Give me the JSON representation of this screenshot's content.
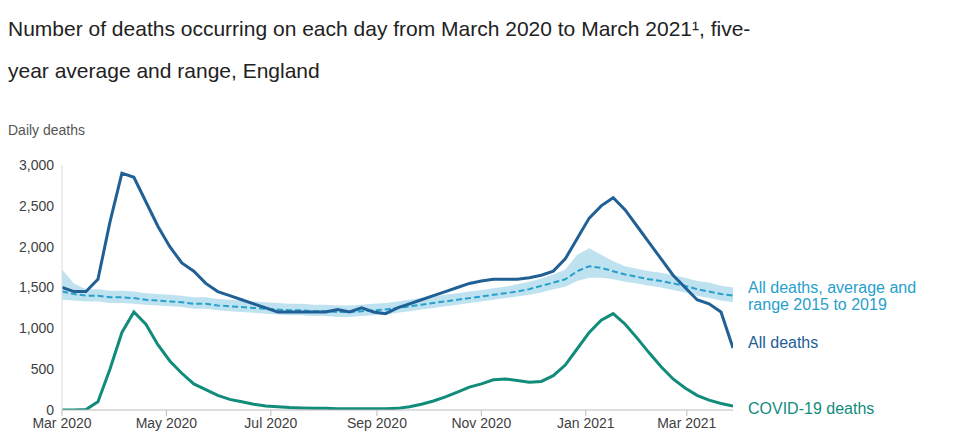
{
  "chart_data": {
    "type": "line",
    "title": "Number of deaths occurring on each day from March 2020 to March 2021¹, five-year average and range, England",
    "y_label": "Daily deaths",
    "x": [
      0,
      7,
      14,
      21,
      28,
      35,
      42,
      49,
      56,
      63,
      70,
      77,
      84,
      91,
      98,
      105,
      112,
      119,
      126,
      133,
      140,
      147,
      154,
      161,
      168,
      175,
      182,
      189,
      196,
      203,
      210,
      217,
      224,
      231,
      238,
      245,
      252,
      259,
      266,
      273,
      280,
      287,
      294,
      301,
      308,
      315,
      322,
      329,
      336,
      343,
      350,
      357,
      364,
      371,
      378,
      385,
      392
    ],
    "xlim": [
      0,
      392
    ],
    "xticks": [
      {
        "value": 0,
        "label": "Mar 2020"
      },
      {
        "value": 61,
        "label": "May 2020"
      },
      {
        "value": 122,
        "label": "Jul 2020"
      },
      {
        "value": 184,
        "label": "Sep 2020"
      },
      {
        "value": 245,
        "label": "Nov 2020"
      },
      {
        "value": 306,
        "label": "Jan 2021"
      },
      {
        "value": 365,
        "label": "Mar 2021"
      }
    ],
    "ylim": [
      0,
      3000
    ],
    "yticks": [
      0,
      500,
      {
        "value": 1000,
        "label": "1,000"
      },
      {
        "value": 1500,
        "label": "1,500"
      },
      {
        "value": 2000,
        "label": "2,000"
      },
      {
        "value": 2500,
        "label": "2,500"
      },
      {
        "value": 3000,
        "label": "3,000"
      }
    ],
    "grid": false,
    "series": [
      {
        "name": "All deaths",
        "color": "#206095",
        "line_style": "solid",
        "values": [
          1500,
          1450,
          1450,
          1600,
          2300,
          2900,
          2850,
          2550,
          2250,
          2000,
          1800,
          1700,
          1550,
          1450,
          1400,
          1350,
          1300,
          1250,
          1200,
          1200,
          1200,
          1200,
          1200,
          1230,
          1200,
          1250,
          1200,
          1180,
          1250,
          1300,
          1350,
          1400,
          1450,
          1500,
          1550,
          1580,
          1600,
          1600,
          1600,
          1620,
          1650,
          1700,
          1850,
          2100,
          2350,
          2500,
          2600,
          2450,
          2250,
          2050,
          1850,
          1650,
          1500,
          1350,
          1300,
          1200,
          760
        ]
      },
      {
        "name": "All deaths, average and range 2015 to 2019",
        "color": "#27a0cc",
        "line_style": "dashed",
        "values": [
          1450,
          1420,
          1400,
          1400,
          1380,
          1380,
          1370,
          1350,
          1340,
          1330,
          1320,
          1300,
          1300,
          1280,
          1270,
          1260,
          1250,
          1240,
          1230,
          1220,
          1220,
          1210,
          1210,
          1200,
          1200,
          1210,
          1220,
          1230,
          1250,
          1270,
          1290,
          1310,
          1330,
          1350,
          1370,
          1390,
          1410,
          1430,
          1450,
          1480,
          1520,
          1560,
          1600,
          1700,
          1760,
          1740,
          1700,
          1660,
          1630,
          1600,
          1580,
          1550,
          1520,
          1480,
          1450,
          1420,
          1400
        ],
        "lower": [
          1350,
          1340,
          1330,
          1330,
          1310,
          1310,
          1300,
          1290,
          1280,
          1270,
          1260,
          1240,
          1240,
          1220,
          1210,
          1200,
          1190,
          1180,
          1170,
          1160,
          1160,
          1150,
          1150,
          1140,
          1140,
          1150,
          1160,
          1170,
          1190,
          1210,
          1230,
          1250,
          1270,
          1290,
          1310,
          1330,
          1350,
          1370,
          1390,
          1410,
          1440,
          1480,
          1510,
          1580,
          1620,
          1620,
          1600,
          1570,
          1550,
          1520,
          1500,
          1470,
          1440,
          1400,
          1370,
          1340,
          1320
        ],
        "upper": [
          1720,
          1550,
          1480,
          1480,
          1460,
          1460,
          1450,
          1430,
          1420,
          1410,
          1400,
          1380,
          1380,
          1360,
          1350,
          1340,
          1330,
          1320,
          1310,
          1300,
          1300,
          1290,
          1290,
          1280,
          1280,
          1290,
          1300,
          1310,
          1330,
          1350,
          1370,
          1390,
          1410,
          1430,
          1450,
          1470,
          1490,
          1510,
          1540,
          1570,
          1610,
          1660,
          1720,
          1900,
          1980,
          1900,
          1820,
          1760,
          1730,
          1700,
          1680,
          1650,
          1620,
          1580,
          1560,
          1520,
          1500
        ]
      },
      {
        "name": "COVID-19 deaths",
        "color": "#118c7b",
        "line_style": "solid",
        "values": [
          0,
          0,
          5,
          100,
          500,
          950,
          1200,
          1050,
          800,
          600,
          450,
          320,
          250,
          180,
          130,
          100,
          70,
          50,
          40,
          30,
          25,
          20,
          20,
          15,
          15,
          15,
          15,
          15,
          20,
          40,
          70,
          110,
          160,
          220,
          280,
          320,
          370,
          380,
          360,
          340,
          350,
          420,
          550,
          750,
          950,
          1100,
          1180,
          1050,
          880,
          700,
          530,
          380,
          270,
          180,
          120,
          80,
          50
        ]
      }
    ]
  }
}
